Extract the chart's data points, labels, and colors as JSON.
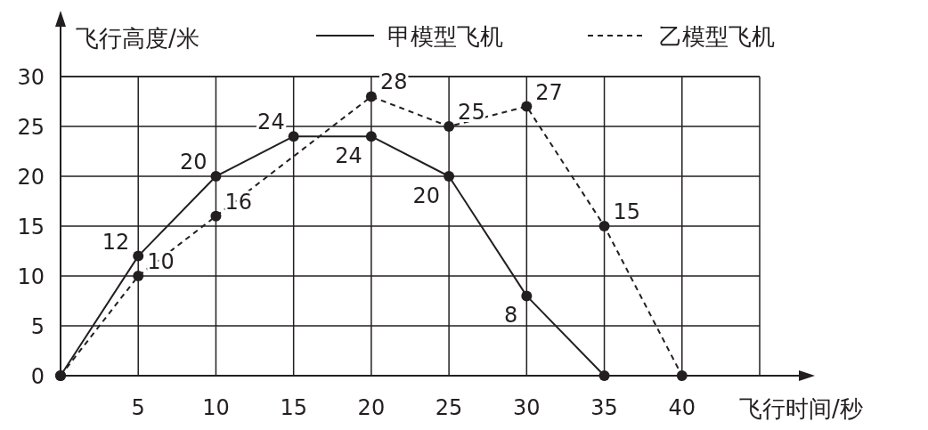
{
  "chart_data": {
    "type": "line",
    "xlabel": "飞行时间/秒",
    "ylabel": "飞行高度/米",
    "xlim": [
      0,
      45
    ],
    "xticks": [
      5,
      10,
      15,
      20,
      25,
      30,
      35,
      40
    ],
    "ylim": [
      0,
      30
    ],
    "yticks": [
      0,
      5,
      10,
      15,
      20,
      25,
      30
    ],
    "grid": true,
    "legend": "top",
    "marker": "circle",
    "series": [
      {
        "name": "甲模型飞机",
        "color": "#231f20",
        "line_style": "solid",
        "x": [
          0,
          5,
          10,
          15,
          20,
          25,
          30,
          35
        ],
        "values": [
          0,
          12,
          20,
          24,
          24,
          20,
          8,
          0
        ],
        "value_labels": [
          null,
          "12",
          "20",
          "24",
          "24",
          "20",
          "8",
          null
        ]
      },
      {
        "name": "乙模型飞机",
        "color": "#231f20",
        "line_style": "dashed",
        "x": [
          0,
          5,
          10,
          20,
          25,
          30,
          35,
          40
        ],
        "values": [
          0,
          10,
          16,
          28,
          25,
          27,
          15,
          0
        ],
        "value_labels": [
          null,
          "10",
          "16",
          "28",
          "25",
          "27",
          "15",
          null
        ]
      }
    ]
  }
}
